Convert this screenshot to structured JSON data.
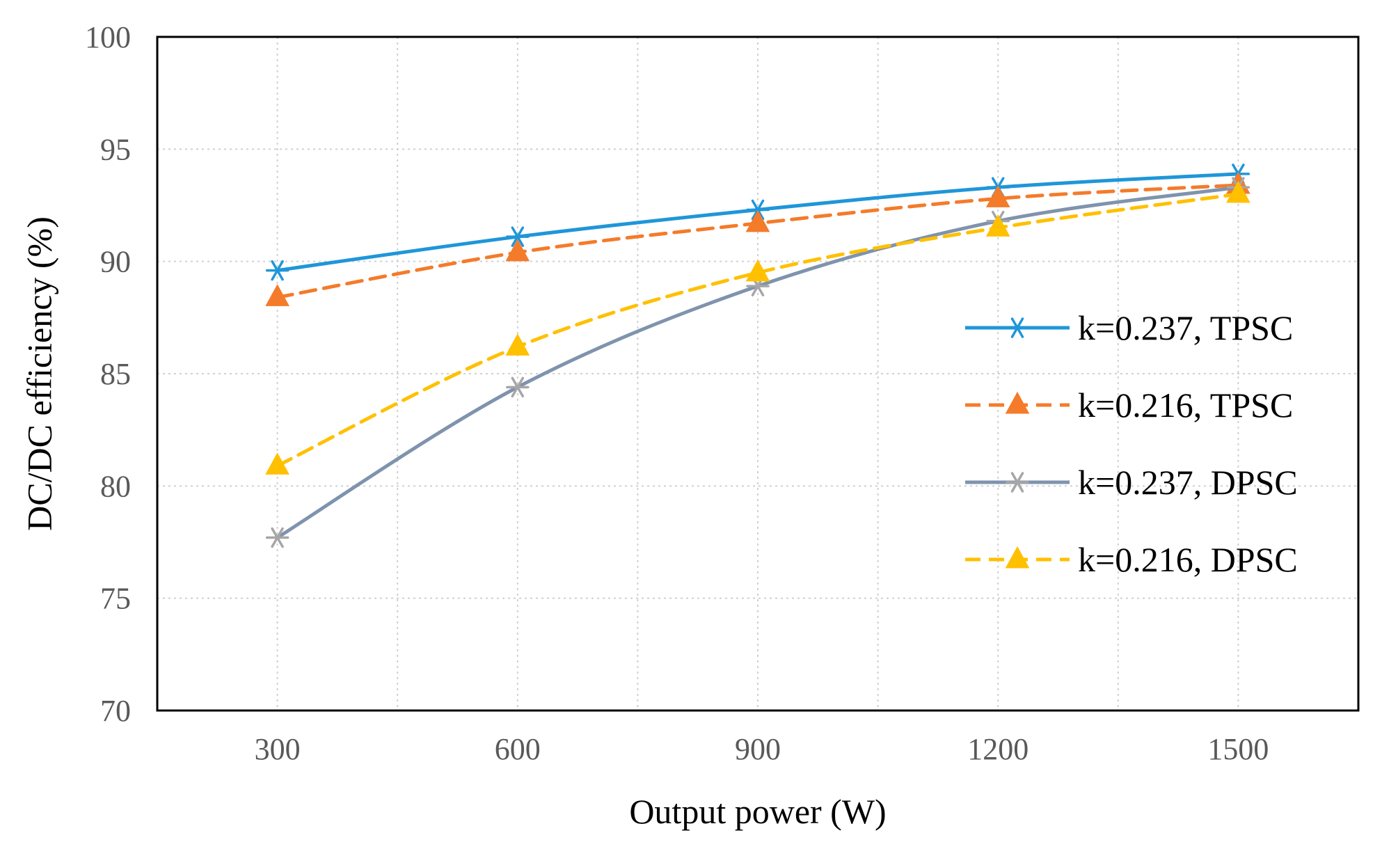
{
  "chart_data": {
    "type": "line",
    "title": "",
    "xlabel": "Output power (W)",
    "ylabel": "DC/DC efficiency (%)",
    "x": [
      300,
      600,
      900,
      1200,
      1500
    ],
    "x_range": [
      150,
      1650
    ],
    "ylim": [
      70,
      100
    ],
    "yticks": [
      70,
      75,
      80,
      85,
      90,
      95,
      100
    ],
    "grid": true,
    "legend_position": "right",
    "series": [
      {
        "name": "k=0.237, TPSC",
        "values": [
          89.6,
          91.1,
          92.3,
          93.3,
          93.9
        ],
        "color": "#1f96d9",
        "dash": "solid",
        "marker": "asterisk"
      },
      {
        "name": "k=0.216, TPSC",
        "values": [
          88.4,
          90.4,
          91.7,
          92.8,
          93.4
        ],
        "color": "#f47b2a",
        "dash": "dashed",
        "marker": "triangle"
      },
      {
        "name": "k=0.237, DPSC",
        "values": [
          77.7,
          84.4,
          88.9,
          91.8,
          93.3
        ],
        "color": "#7f93ad",
        "dash": "solid",
        "marker": "asterisk",
        "marker_color": "#a6a6a6"
      },
      {
        "name": "k=0.216, DPSC",
        "values": [
          80.9,
          86.2,
          89.5,
          91.5,
          93.0
        ],
        "color": "#ffc000",
        "dash": "dashed",
        "marker": "triangle"
      }
    ]
  }
}
